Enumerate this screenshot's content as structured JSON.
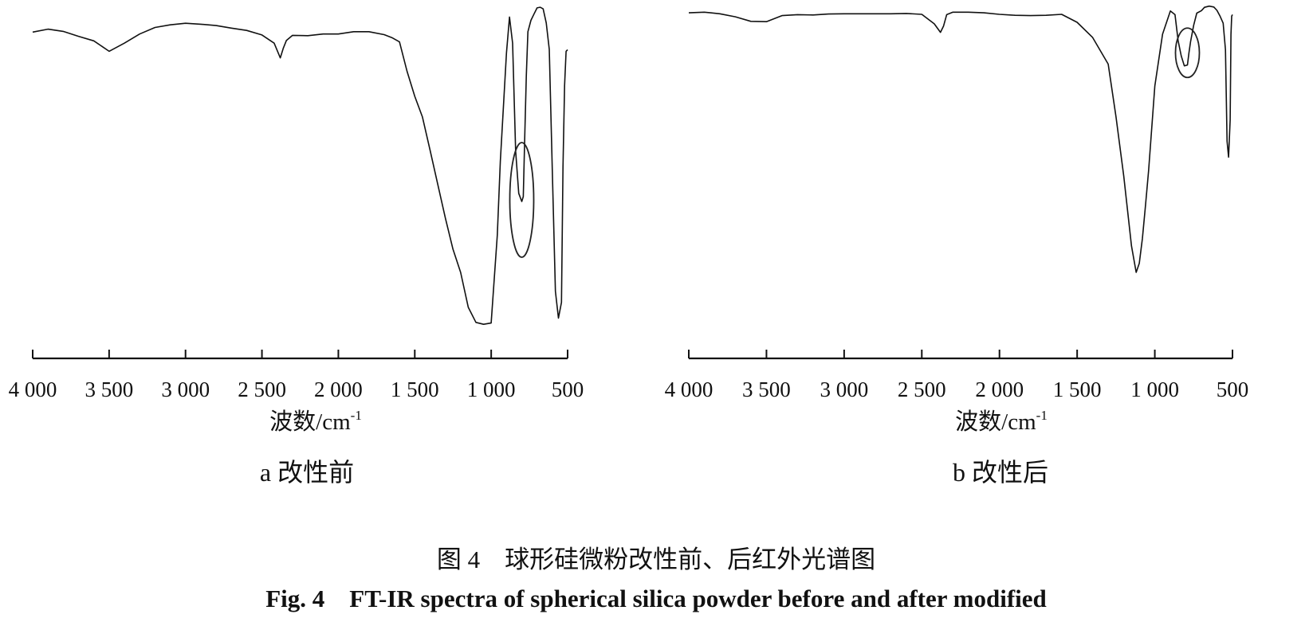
{
  "chart_data": [
    {
      "type": "line",
      "panel_label": "a 改性前",
      "xlabel": "波数/cm",
      "xlabel_sup": "-1",
      "ylabel": "",
      "xlim": [
        4000,
        500
      ],
      "x_reversed": true,
      "xticks": [
        4000,
        3500,
        3000,
        2500,
        2000,
        1500,
        1000,
        500
      ],
      "xtick_labels": [
        "4 000",
        "3 500",
        "3 000",
        "2 500",
        "2 000",
        "1 500",
        "1 000",
        "500"
      ],
      "y_axis_visible": false,
      "grid": false,
      "ylim": [
        0,
        100
      ],
      "series": [
        {
          "x": [
            4000,
            3900,
            3800,
            3700,
            3600,
            3500,
            3400,
            3300,
            3200,
            3100,
            3000,
            2900,
            2800,
            2700,
            2600,
            2500,
            2420,
            2380,
            2360,
            2340,
            2300,
            2200,
            2100,
            2000,
            1900,
            1800,
            1700,
            1650,
            1600,
            1550,
            1500,
            1450,
            1400,
            1350,
            1300,
            1250,
            1200,
            1150,
            1100,
            1050,
            1000,
            960,
            940,
            900,
            880,
            860,
            840,
            820,
            800,
            790,
            780,
            770,
            760,
            740,
            720,
            700,
            680,
            660,
            640,
            620,
            600,
            580,
            560,
            540,
            530,
            520,
            510,
            500
          ],
          "y": [
            91.4,
            92.3,
            91.6,
            90.1,
            88.7,
            85.5,
            88.0,
            90.8,
            92.8,
            93.6,
            94.1,
            93.8,
            93.4,
            92.6,
            91.9,
            90.5,
            88.0,
            83.5,
            86.5,
            88.8,
            90.4,
            90.3,
            90.8,
            90.8,
            91.5,
            91.5,
            90.6,
            89.7,
            88.4,
            79.3,
            71.7,
            65.4,
            55.2,
            44.9,
            34.5,
            24.9,
            17.8,
            7.1,
            2.5,
            1.9,
            2.3,
            29.2,
            51.8,
            85.0,
            96.0,
            88.0,
            55.0,
            42.0,
            39.5,
            41.0,
            60.0,
            78.0,
            91.5,
            95.0,
            96.9,
            98.8,
            99.0,
            98.5,
            94.2,
            86.1,
            49.0,
            12.0,
            3.8,
            8.6,
            50.0,
            75.0,
            85.5,
            86.0
          ]
        }
      ],
      "annotations": [
        {
          "shape": "ellipse",
          "x": 800,
          "y": 40
        }
      ]
    },
    {
      "type": "line",
      "panel_label": "b 改性后",
      "xlabel": "波数/cm",
      "xlabel_sup": "-1",
      "ylabel": "",
      "xlim": [
        4000,
        500
      ],
      "x_reversed": true,
      "xticks": [
        4000,
        3500,
        3000,
        2500,
        2000,
        1500,
        1000,
        500
      ],
      "xtick_labels": [
        "4 000",
        "3 500",
        "3 000",
        "2 500",
        "2 000",
        "1 500",
        "1 000",
        "500"
      ],
      "y_axis_visible": false,
      "grid": false,
      "ylim": [
        0,
        100
      ],
      "series": [
        {
          "x": [
            4000,
            3900,
            3800,
            3700,
            3600,
            3500,
            3400,
            3300,
            3200,
            3100,
            3000,
            2900,
            2800,
            2700,
            2600,
            2500,
            2420,
            2380,
            2360,
            2340,
            2300,
            2200,
            2100,
            2000,
            1900,
            1800,
            1700,
            1600,
            1500,
            1400,
            1300,
            1250,
            1200,
            1150,
            1120,
            1100,
            1080,
            1060,
            1040,
            1000,
            950,
            900,
            870,
            850,
            830,
            810,
            790,
            780,
            770,
            750,
            730,
            700,
            680,
            650,
            620,
            600,
            580,
            560,
            545,
            535,
            525,
            515,
            510,
            505,
            500
          ],
          "y": [
            97.1,
            97.3,
            96.8,
            95.8,
            94.3,
            94.2,
            96.2,
            96.5,
            96.4,
            96.7,
            96.8,
            96.8,
            96.8,
            96.8,
            96.9,
            96.6,
            93.5,
            90.7,
            92.8,
            96.5,
            97.3,
            97.3,
            97.1,
            96.6,
            96.3,
            96.2,
            96.3,
            96.6,
            94.0,
            89.0,
            80.3,
            63.0,
            43.6,
            20.7,
            12.0,
            15.0,
            23.1,
            34.0,
            45.4,
            73.1,
            90.1,
            97.7,
            96.5,
            88.0,
            83.0,
            79.7,
            80.0,
            84.0,
            87.6,
            93.0,
            97.0,
            97.8,
            98.9,
            99.3,
            99.0,
            97.9,
            96.0,
            93.7,
            85.0,
            55.0,
            49.8,
            62.0,
            90.0,
            96.0,
            96.5
          ]
        }
      ],
      "annotations": [
        {
          "shape": "ellipse",
          "x": 790,
          "y": 84
        }
      ]
    }
  ],
  "caption": {
    "cn": "图 4　球形硅微粉改性前、后红外光谱图",
    "en": "Fig. 4　FT-IR spectra of spherical silica powder before and after modified"
  }
}
